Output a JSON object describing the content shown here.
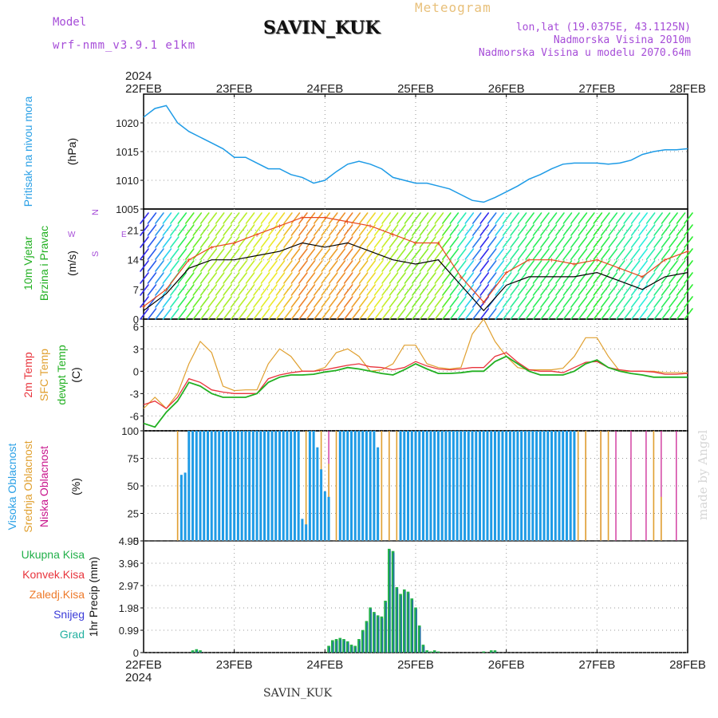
{
  "header": {
    "model_label": "Model",
    "model_code": "wrf-nmm_v3.9.1 e1km",
    "station": "SAVIN_KUK",
    "meteogram": "Meteogram",
    "lonlat": "lon,lat (19.0375E, 43.1125N)",
    "altitude": "Nadmorska Visina 2010m",
    "model_altitude": "Nadmorska Visina u modelu 2070.64m",
    "credit": "made by Angel",
    "footer": "SAVIN_KUK",
    "year": "2024"
  },
  "time_axis": {
    "ticks": [
      "22FEB",
      "23FEB",
      "24FEB",
      "25FEB",
      "26FEB",
      "27FEB",
      "28FEB"
    ],
    "range_hours": [
      0,
      144
    ]
  },
  "colors": {
    "pressure": "#1e9be6",
    "wind_speed": "#000000",
    "wind_gust": "#e8481c",
    "temp_2m": "#e8343c",
    "temp_sfc": "#e0a030",
    "dewpoint": "#22b022",
    "cloud_high": "#1e9be6",
    "cloud_mid": "#e0a030",
    "cloud_low": "#c8148c",
    "precip_total": "#22b04a",
    "precip_conv": "#e8343c",
    "precip_grid": "#2233c8"
  },
  "chart_data": [
    {
      "type": "line",
      "panel": "pressure",
      "ylabel": [
        "Pritisak na nivou mora",
        "(hPa)"
      ],
      "yticks": [
        1005,
        1010,
        1015,
        1020
      ],
      "ylim": [
        1005,
        1025
      ],
      "series": [
        {
          "key": "slp",
          "x": [
            0,
            3,
            6,
            9,
            12,
            15,
            18,
            21,
            24,
            27,
            30,
            33,
            36,
            39,
            42,
            45,
            48,
            51,
            54,
            57,
            60,
            63,
            66,
            69,
            72,
            75,
            78,
            81,
            84,
            87,
            90,
            93,
            96,
            99,
            102,
            105,
            108,
            111,
            114,
            117,
            120,
            123,
            126,
            129,
            132,
            135,
            138,
            141,
            144
          ],
          "values": [
            1021,
            1022.5,
            1023,
            1020,
            1018.5,
            1017.5,
            1016.5,
            1015.5,
            1014,
            1014,
            1013,
            1012,
            1012,
            1011,
            1010.5,
            1009.5,
            1010,
            1011.5,
            1012.8,
            1013.3,
            1012.8,
            1012,
            1010.5,
            1010,
            1009.5,
            1009.5,
            1009,
            1008.5,
            1007.5,
            1006.5,
            1006.2,
            1007,
            1008,
            1009,
            1010.2,
            1011,
            1012,
            1012.8,
            1013,
            1013,
            1013,
            1012.8,
            1013,
            1013.5,
            1014.5,
            1015,
            1015.3,
            1015.3,
            1015.5
          ]
        }
      ]
    },
    {
      "type": "line",
      "panel": "wind",
      "ylabel": [
        "10m Vjetar",
        "Brzina i Pravac",
        "(m/s)"
      ],
      "yticks": [
        0,
        7,
        14,
        21
      ],
      "ylim": [
        0,
        26
      ],
      "series": [
        {
          "key": "speed",
          "x": [
            0,
            6,
            12,
            18,
            24,
            30,
            36,
            42,
            48,
            54,
            60,
            66,
            72,
            78,
            84,
            90,
            96,
            102,
            108,
            114,
            120,
            126,
            132,
            138,
            144
          ],
          "values": [
            2,
            6,
            12,
            14,
            14,
            15,
            16,
            18,
            17,
            18,
            16,
            14,
            13,
            14,
            8,
            2,
            8,
            10,
            10,
            10,
            11,
            9,
            7,
            10,
            11
          ]
        },
        {
          "key": "gust",
          "x": [
            0,
            6,
            12,
            18,
            24,
            30,
            36,
            42,
            48,
            54,
            60,
            66,
            72,
            78,
            84,
            90,
            96,
            102,
            108,
            114,
            120,
            126,
            132,
            138,
            144
          ],
          "values": [
            3,
            7,
            14,
            17,
            18,
            20,
            22,
            24,
            24,
            23,
            22,
            20,
            18,
            18,
            10,
            4,
            11,
            14,
            14,
            13,
            14,
            12,
            10,
            14,
            16
          ]
        }
      ],
      "legend": [
        "N",
        "W",
        "E",
        "S"
      ]
    },
    {
      "type": "line",
      "panel": "temperature",
      "ylabel": [
        "2m Temp",
        "SFC Temp",
        "dewpt Temp",
        "(C)"
      ],
      "yticks": [
        -6,
        -3,
        0,
        3,
        6
      ],
      "ylim": [
        -8,
        7
      ],
      "series": [
        {
          "key": "t2m",
          "x": [
            0,
            3,
            6,
            9,
            12,
            15,
            18,
            21,
            24,
            27,
            30,
            33,
            36,
            39,
            42,
            45,
            48,
            51,
            54,
            57,
            60,
            63,
            66,
            69,
            72,
            75,
            78,
            81,
            84,
            87,
            90,
            93,
            96,
            99,
            102,
            105,
            108,
            111,
            114,
            117,
            120,
            123,
            126,
            129,
            132,
            135,
            138,
            141,
            144
          ],
          "values": [
            -4.5,
            -4,
            -5,
            -3.5,
            -1,
            -1.5,
            -2.5,
            -2.8,
            -3,
            -3,
            -3,
            -1,
            -0.5,
            -0.2,
            0,
            0,
            0.2,
            0.5,
            0.8,
            1,
            0.6,
            0.5,
            0.2,
            0.5,
            1.3,
            0.7,
            0.3,
            0.2,
            0.3,
            0.5,
            0.5,
            2,
            2.5,
            1.2,
            0.2,
            0,
            0,
            -0.2,
            0.5,
            1.2,
            1.3,
            0.5,
            0.2,
            0,
            0,
            -0.1,
            -0.4,
            -0.4,
            -0.3
          ]
        },
        {
          "key": "tsfc",
          "x": [
            0,
            3,
            6,
            9,
            12,
            15,
            18,
            21,
            24,
            27,
            30,
            33,
            36,
            39,
            42,
            45,
            48,
            51,
            54,
            57,
            60,
            63,
            66,
            69,
            72,
            75,
            78,
            81,
            84,
            87,
            90,
            93,
            96,
            99,
            102,
            105,
            108,
            111,
            114,
            117,
            120,
            123,
            126,
            129,
            132,
            135,
            138,
            141,
            144
          ],
          "values": [
            -5,
            -3.5,
            -5,
            -3,
            1,
            4,
            2.5,
            -2,
            -2.6,
            -2.5,
            -2.5,
            1,
            3,
            2,
            0,
            0,
            0.5,
            2.5,
            3,
            2,
            0,
            0.2,
            1,
            3.5,
            3.5,
            1,
            0.5,
            0.3,
            0.5,
            5,
            7,
            4,
            2,
            0.5,
            0.2,
            0.2,
            0.2,
            0.4,
            2,
            4.5,
            4.5,
            2,
            0,
            0,
            0,
            0,
            -0.2,
            -0.2,
            -0.2
          ]
        },
        {
          "key": "dewpt",
          "x": [
            0,
            3,
            6,
            9,
            12,
            15,
            18,
            21,
            24,
            27,
            30,
            33,
            36,
            39,
            42,
            45,
            48,
            51,
            54,
            57,
            60,
            63,
            66,
            69,
            72,
            75,
            78,
            81,
            84,
            87,
            90,
            93,
            96,
            99,
            102,
            105,
            108,
            111,
            114,
            117,
            120,
            123,
            126,
            129,
            132,
            135,
            138,
            141,
            144
          ],
          "values": [
            -7,
            -7.5,
            -5.5,
            -4,
            -1.5,
            -2,
            -3,
            -3.5,
            -3.5,
            -3.5,
            -3,
            -1.5,
            -0.8,
            -0.5,
            -0.5,
            -0.4,
            -0.1,
            0.1,
            0.5,
            0.3,
            0,
            -0.3,
            -0.5,
            0.2,
            1,
            0.3,
            -0.3,
            -0.3,
            -0.2,
            0,
            0,
            1.3,
            2,
            1,
            0,
            -0.5,
            -0.5,
            -0.5,
            0,
            1,
            1.5,
            0.5,
            0,
            -0.3,
            -0.5,
            -0.8,
            -0.8,
            -0.8,
            -0.8
          ]
        }
      ]
    },
    {
      "type": "bar",
      "panel": "clouds",
      "ylabel": [
        "Visoka Oblacnost",
        "Srednja Oblacnost",
        "Niska Oblacnost",
        "(%)"
      ],
      "yticks": [
        0,
        25,
        50,
        75,
        100
      ],
      "ylim": [
        0,
        100
      ],
      "series": [
        {
          "key": "high",
          "x": [
            10,
            11,
            12,
            13,
            14,
            15,
            16,
            17,
            18,
            19,
            20,
            21,
            22,
            23,
            24,
            25,
            26,
            27,
            28,
            29,
            30,
            31,
            32,
            33,
            34,
            35,
            36,
            37,
            38,
            39,
            40,
            41,
            42,
            43,
            44,
            45,
            46,
            47,
            48,
            49,
            52,
            53,
            54,
            55,
            56,
            57,
            58,
            59,
            60,
            61,
            62,
            68,
            69,
            70,
            71,
            72,
            73,
            74,
            75,
            76,
            77,
            78,
            79,
            80,
            81,
            82,
            83,
            84,
            85,
            86,
            87,
            88,
            89,
            90,
            91,
            92,
            93,
            94,
            95,
            96,
            97,
            98,
            99,
            100,
            101,
            102,
            103,
            104,
            105,
            106,
            107,
            108,
            109,
            110,
            111,
            112,
            113,
            114
          ],
          "values": [
            60,
            62,
            100,
            100,
            100,
            100,
            100,
            100,
            100,
            100,
            100,
            100,
            100,
            100,
            100,
            100,
            100,
            100,
            100,
            100,
            100,
            100,
            100,
            100,
            100,
            100,
            100,
            100,
            100,
            100,
            100,
            100,
            20,
            15,
            100,
            100,
            85,
            65,
            45,
            40,
            100,
            100,
            100,
            100,
            100,
            100,
            100,
            100,
            100,
            100,
            85,
            100,
            100,
            100,
            100,
            100,
            100,
            100,
            100,
            100,
            100,
            100,
            100,
            100,
            100,
            100,
            100,
            100,
            100,
            100,
            100,
            100,
            100,
            100,
            100,
            100,
            100,
            100,
            100,
            100,
            100,
            100,
            100,
            100,
            100,
            100,
            100,
            100,
            100,
            100,
            100,
            100,
            100,
            100,
            100,
            100,
            100,
            100
          ]
        },
        {
          "key": "mid",
          "x": [
            9,
            11,
            13,
            15,
            17,
            19,
            21,
            23,
            25,
            27,
            29,
            31,
            33,
            35,
            37,
            39,
            41,
            43,
            45,
            47,
            49,
            51,
            53,
            55,
            57,
            59,
            61,
            63,
            65,
            67,
            69,
            71,
            73,
            75,
            77,
            79,
            81,
            83,
            85,
            87,
            89,
            91,
            93,
            95,
            97,
            99,
            101,
            103,
            105,
            107,
            109,
            111,
            113,
            115,
            117,
            121,
            123,
            135,
            137
          ],
          "values": [
            100,
            60,
            100,
            100,
            100,
            100,
            100,
            100,
            100,
            100,
            100,
            100,
            100,
            100,
            100,
            40,
            100,
            100,
            90,
            100,
            70,
            100,
            100,
            100,
            100,
            100,
            100,
            100,
            100,
            100,
            100,
            100,
            100,
            100,
            100,
            100,
            100,
            100,
            100,
            100,
            100,
            100,
            100,
            100,
            100,
            100,
            100,
            100,
            100,
            100,
            100,
            100,
            100,
            100,
            100,
            100,
            100,
            100,
            40
          ]
        },
        {
          "key": "low",
          "x": [
            9,
            13,
            17,
            21,
            25,
            29,
            33,
            37,
            41,
            45,
            49,
            53,
            57,
            61,
            65,
            69,
            73,
            77,
            81,
            85,
            89,
            93,
            97,
            101,
            105,
            109,
            113,
            117,
            121,
            125,
            129,
            133,
            137,
            141
          ],
          "values": [
            100,
            100,
            100,
            100,
            100,
            100,
            100,
            100,
            100,
            100,
            100,
            100,
            100,
            100,
            100,
            100,
            100,
            100,
            100,
            100,
            100,
            100,
            100,
            100,
            100,
            100,
            100,
            100,
            100,
            100,
            100,
            100,
            100,
            100
          ]
        }
      ]
    },
    {
      "type": "bar",
      "panel": "precip",
      "ylabel": [
        "1hr Precip (mm)"
      ],
      "legend": [
        "Ukupna Kisa",
        "Konvek.Kisa",
        "Zaledj.Kisa",
        "Snijeg",
        "Grad"
      ],
      "yticks": [
        0,
        0.99,
        1.98,
        2.97,
        3.96,
        4.95
      ],
      "ylim": [
        0,
        4.95
      ],
      "series": [
        {
          "key": "total",
          "x": [
            13,
            14,
            15,
            49,
            50,
            51,
            52,
            53,
            54,
            55,
            56,
            57,
            58,
            59,
            60,
            61,
            62,
            63,
            64,
            65,
            66,
            67,
            68,
            69,
            70,
            71,
            72,
            73,
            74,
            75,
            76,
            77,
            78,
            90,
            92,
            93
          ],
          "values": [
            0.1,
            0.15,
            0.1,
            0.3,
            0.55,
            0.6,
            0.65,
            0.6,
            0.5,
            0.35,
            0.3,
            0.6,
            1.0,
            1.4,
            2.0,
            1.8,
            1.65,
            1.6,
            2.3,
            4.6,
            4.5,
            2.9,
            2.6,
            2.8,
            2.7,
            2.4,
            2.0,
            1.2,
            0.35,
            0.1,
            0.05,
            0.1,
            0.05,
            0.05,
            0.1,
            0.1
          ]
        }
      ]
    }
  ]
}
